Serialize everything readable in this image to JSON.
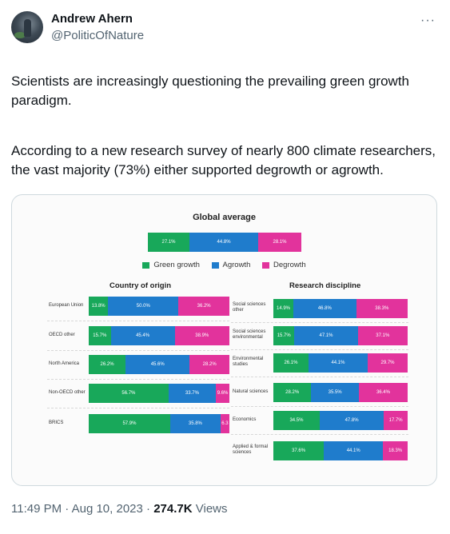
{
  "author": {
    "display_name": "Andrew Ahern",
    "handle": "@PoliticOfNature",
    "more_icon": "···"
  },
  "text": {
    "paragraph1": "Scientists are increasingly questioning the prevailing green growth paradigm.",
    "paragraph2": "According to a new research survey of nearly 800 climate researchers, the vast majority (73%) either supported degrowth or agrowth."
  },
  "chart": {
    "title": "Global average",
    "legend": [
      "Green growth",
      "Agrowth",
      "Degrowth"
    ],
    "left_heading": "Country of origin",
    "right_heading": "Research discipline"
  },
  "chart_data": [
    {
      "type": "bar",
      "title": "Global average",
      "colors": [
        "#18a85a",
        "#1f7ccc",
        "#e2339c"
      ],
      "series_names": [
        "Green growth",
        "Agrowth",
        "Degrowth"
      ],
      "categories": [
        "Global average"
      ],
      "values": [
        [
          27.1,
          44.8,
          28.1
        ]
      ],
      "labels": [
        [
          "27.1%",
          "44.8%",
          "28.1%"
        ]
      ]
    },
    {
      "type": "bar",
      "title": "Country of origin",
      "categories": [
        "European Union",
        "OECD other",
        "North America",
        "Non-OECD other",
        "BRICS"
      ],
      "values": [
        [
          13.8,
          50.0,
          36.2
        ],
        [
          15.7,
          45.4,
          38.9
        ],
        [
          26.2,
          45.6,
          28.2
        ],
        [
          56.7,
          33.7,
          9.6
        ],
        [
          57.9,
          35.8,
          6.3
        ]
      ],
      "labels": [
        [
          "13.8%",
          "50.0%",
          "36.2%"
        ],
        [
          "15.7%",
          "45.4%",
          "38.9%"
        ],
        [
          "26.2%",
          "45.6%",
          "28.2%"
        ],
        [
          "56.7%",
          "33.7%",
          "9.6%"
        ],
        [
          "57.9%",
          "35.8%",
          "6.3"
        ]
      ]
    },
    {
      "type": "bar",
      "title": "Research discipline",
      "categories": [
        "Social sciences other",
        "Social sciences environmental",
        "Environmental studies",
        "Natural sciences",
        "Economics",
        "Applied & formal sciences"
      ],
      "category_lines": [
        [
          "Social sciences",
          "other"
        ],
        [
          "Social sciences",
          "environmental"
        ],
        [
          "Environmental",
          "studies"
        ],
        [
          "Natural sciences"
        ],
        [
          "Economics"
        ],
        [
          "Applied & formal",
          "sciences"
        ]
      ],
      "values": [
        [
          14.9,
          46.8,
          38.3
        ],
        [
          15.7,
          47.1,
          37.1
        ],
        [
          26.1,
          44.1,
          29.7
        ],
        [
          28.2,
          35.5,
          36.4
        ],
        [
          34.5,
          47.8,
          17.7
        ],
        [
          37.6,
          44.1,
          18.3
        ]
      ],
      "labels": [
        [
          "14.9%",
          "46.8%",
          "38.3%"
        ],
        [
          "15.7%",
          "47.1%",
          "37.1%"
        ],
        [
          "26.1%",
          "44.1%",
          "29.7%"
        ],
        [
          "28.2%",
          "35.5%",
          "36.4%"
        ],
        [
          "34.5%",
          "47.8%",
          "17.7%"
        ],
        [
          "37.6%",
          "44.1%",
          "18.3%"
        ]
      ]
    }
  ],
  "footer": {
    "time": "11:49 PM",
    "date": "Aug 10, 2023",
    "views_count": "274.7K",
    "views_label": "Views",
    "sep": "·"
  }
}
